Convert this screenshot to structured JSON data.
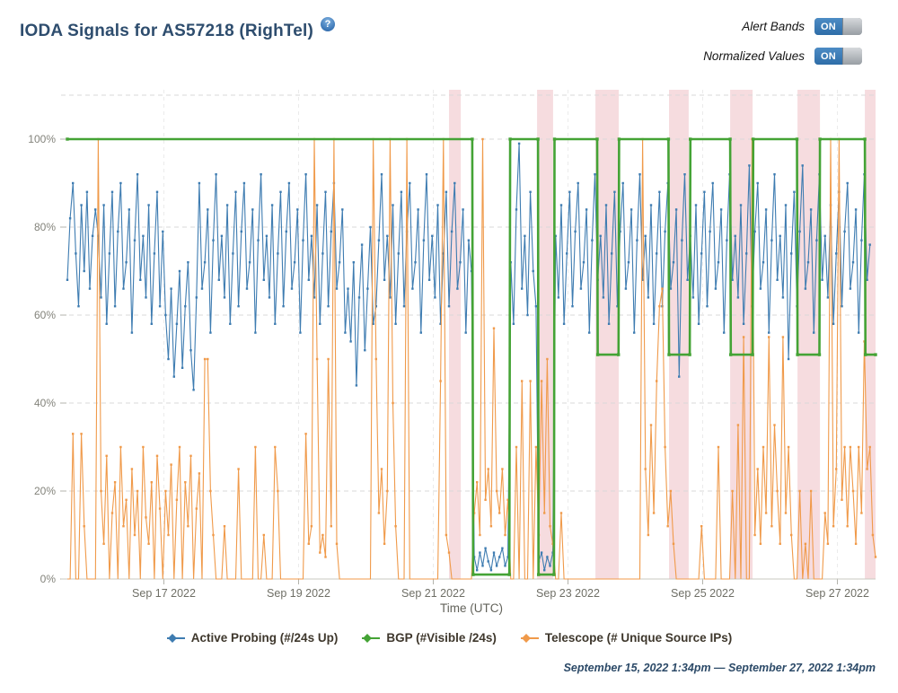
{
  "header": {
    "title": "IODA Signals for AS57218 (RighTel)",
    "help_glyph": "?",
    "toggles": [
      {
        "label": "Alert Bands",
        "state": "ON"
      },
      {
        "label": "Normalized Values",
        "state": "ON"
      }
    ]
  },
  "footer": {
    "date_range": "September 15, 2022 1:34pm — September 27, 2022 1:34pm"
  },
  "colors": {
    "alert_band": "#d96b79",
    "grid": "#d9d9d9",
    "grid_v": "#ebebeb",
    "axis": "#c9c9c2",
    "tick": "#b3b3ac"
  },
  "chart_data": {
    "type": "line",
    "title": "IODA Signals for AS57218 (RighTel)",
    "xlabel": "Time (UTC)",
    "ylabel": "",
    "x_unit": "hours since Sep 15 2022 1:34pm UTC",
    "x_range_hours": [
      0,
      288
    ],
    "ylim_pct": [
      0,
      110
    ],
    "grid": "dashed",
    "legend_position": "bottom",
    "y_ticks": [
      {
        "v": 0,
        "label": "0%"
      },
      {
        "v": 20,
        "label": "20%"
      },
      {
        "v": 40,
        "label": "40%"
      },
      {
        "v": 60,
        "label": "60%"
      },
      {
        "v": 80,
        "label": "80%"
      },
      {
        "v": 100,
        "label": "100%"
      }
    ],
    "y_gridlines": [
      0,
      20,
      40,
      60,
      80,
      100,
      110
    ],
    "x_ticks": [
      {
        "t": 34.4,
        "label": "Sep 17 2022"
      },
      {
        "t": 82.4,
        "label": "Sep 19 2022"
      },
      {
        "t": 130.4,
        "label": "Sep 21 2022"
      },
      {
        "t": 178.4,
        "label": "Sep 23 2022"
      },
      {
        "t": 226.4,
        "label": "Sep 25 2022"
      },
      {
        "t": 274.4,
        "label": "Sep 27 2022"
      }
    ],
    "alert_bands": [
      [
        136.0,
        140.2
      ],
      [
        167.4,
        173.1
      ],
      [
        188.2,
        196.5
      ],
      [
        214.4,
        221.4
      ],
      [
        236.2,
        244.2
      ],
      [
        260.2,
        268.2
      ],
      [
        284.2,
        288.0
      ]
    ],
    "series": [
      {
        "name": "Active Probing (#/24s Up)",
        "color": "#3e7cb1",
        "step_hours": 1,
        "values": [
          68,
          82,
          90,
          74,
          62,
          85,
          70,
          88,
          66,
          78,
          84,
          78,
          64,
          85,
          58,
          74,
          88,
          62,
          79,
          90,
          66,
          72,
          84,
          56,
          77,
          92,
          68,
          78,
          64,
          85,
          58,
          74,
          88,
          62,
          79,
          60,
          50,
          66,
          46,
          58,
          70,
          48,
          62,
          72,
          52,
          43,
          64,
          90,
          66,
          72,
          84,
          56,
          77,
          92,
          68,
          78,
          64,
          85,
          58,
          74,
          88,
          62,
          79,
          90,
          66,
          72,
          84,
          56,
          77,
          92,
          68,
          78,
          64,
          85,
          58,
          74,
          88,
          62,
          79,
          90,
          66,
          72,
          84,
          56,
          77,
          92,
          68,
          78,
          64,
          85,
          58,
          74,
          88,
          62,
          79,
          90,
          66,
          72,
          84,
          56,
          66,
          54,
          72,
          44,
          64,
          76,
          52,
          66,
          80,
          58,
          62,
          77,
          92,
          68,
          78,
          64,
          85,
          58,
          74,
          88,
          62,
          79,
          90,
          66,
          72,
          84,
          56,
          77,
          92,
          68,
          78,
          64,
          85,
          58,
          74,
          88,
          62,
          79,
          90,
          66,
          72,
          84,
          56,
          77,
          70,
          5,
          2,
          6,
          3,
          7,
          4,
          2,
          6,
          3,
          5,
          7,
          3,
          5,
          72,
          58,
          84,
          99,
          66,
          78,
          60,
          88,
          70,
          62,
          4,
          6,
          2,
          5,
          3,
          6,
          78,
          64,
          85,
          58,
          74,
          88,
          62,
          79,
          90,
          66,
          72,
          84,
          56,
          77,
          92,
          68,
          78,
          64,
          85,
          58,
          74,
          88,
          62,
          79,
          90,
          66,
          72,
          84,
          56,
          77,
          92,
          68,
          78,
          64,
          85,
          58,
          74,
          88,
          62,
          79,
          90,
          66,
          72,
          84,
          46,
          77,
          92,
          68,
          78,
          64,
          85,
          58,
          74,
          88,
          62,
          79,
          90,
          66,
          72,
          84,
          56,
          77,
          92,
          68,
          78,
          64,
          85,
          58,
          74,
          94,
          62,
          79,
          90,
          66,
          72,
          84,
          56,
          77,
          92,
          68,
          78,
          64,
          85,
          50,
          74,
          88,
          62,
          79,
          94,
          66,
          72,
          84,
          56,
          77,
          92,
          68,
          78,
          64,
          85,
          58,
          74,
          88,
          62,
          79,
          90,
          66,
          72,
          84,
          56,
          77,
          92,
          68,
          76
        ]
      },
      {
        "name": "BGP (#Visible /24s)",
        "color": "#44a335",
        "points": [
          [
            0,
            100
          ],
          [
            144.3,
            100
          ],
          [
            144.6,
            1
          ],
          [
            157.5,
            1
          ],
          [
            157.8,
            100
          ],
          [
            167.7,
            100
          ],
          [
            167.9,
            1
          ],
          [
            173.4,
            1
          ],
          [
            173.6,
            100
          ],
          [
            188.8,
            100
          ],
          [
            189.0,
            51
          ],
          [
            196.4,
            51
          ],
          [
            196.6,
            100
          ],
          [
            214.2,
            100
          ],
          [
            214.4,
            51
          ],
          [
            221.8,
            51
          ],
          [
            222.0,
            100
          ],
          [
            236.2,
            100
          ],
          [
            236.4,
            51
          ],
          [
            244.2,
            51
          ],
          [
            244.4,
            100
          ],
          [
            260.0,
            100
          ],
          [
            260.2,
            51
          ],
          [
            268.0,
            51
          ],
          [
            268.2,
            100
          ],
          [
            284.2,
            100
          ],
          [
            284.4,
            51
          ],
          [
            288,
            51
          ]
        ]
      },
      {
        "name": "Telescope (# Unique Source IPs)",
        "color": "#f09a4a",
        "step_hours": 1,
        "values": [
          0,
          0,
          33,
          0,
          0,
          33,
          12,
          0,
          0,
          0,
          0,
          100,
          20,
          8,
          28,
          0,
          15,
          22,
          0,
          30,
          12,
          18,
          0,
          25,
          10,
          20,
          0,
          30,
          14,
          8,
          22,
          0,
          28,
          16,
          0,
          20,
          10,
          26,
          0,
          18,
          30,
          0,
          22,
          12,
          28,
          0,
          16,
          24,
          0,
          50,
          50,
          20,
          10,
          0,
          0,
          0,
          12,
          0,
          0,
          0,
          0,
          25,
          0,
          0,
          0,
          0,
          0,
          30,
          0,
          0,
          10,
          0,
          0,
          0,
          30,
          20,
          0,
          0,
          0,
          0,
          0,
          0,
          0,
          0,
          0,
          33,
          8,
          12,
          100,
          50,
          6,
          10,
          5,
          50,
          12,
          100,
          8,
          0,
          0,
          0,
          0,
          0,
          0,
          0,
          0,
          0,
          0,
          0,
          0,
          100,
          50,
          15,
          25,
          8,
          20,
          100,
          40,
          12,
          0,
          0,
          0,
          100,
          0,
          0,
          0,
          0,
          0,
          0,
          0,
          0,
          0,
          0,
          0,
          45,
          100,
          10,
          6,
          0,
          0,
          0,
          0,
          0,
          0,
          0,
          0,
          15,
          22,
          10,
          100,
          18,
          25,
          12,
          57,
          20,
          15,
          25,
          10,
          18,
          0,
          0,
          30,
          0,
          45,
          0,
          0,
          45,
          0,
          30,
          10,
          45,
          15,
          50,
          12,
          8,
          0,
          0,
          15,
          0,
          0,
          0,
          0,
          0,
          0,
          0,
          0,
          0,
          0,
          0,
          0,
          0,
          0,
          0,
          0,
          0,
          0,
          0,
          0,
          0,
          0,
          0,
          0,
          0,
          0,
          0,
          0,
          100,
          25,
          10,
          35,
          15,
          45,
          62,
          66,
          30,
          12,
          20,
          8,
          0,
          0,
          0,
          0,
          0,
          0,
          0,
          0,
          0,
          12,
          0,
          0,
          0,
          0,
          0,
          30,
          0,
          0,
          0,
          0,
          20,
          0,
          35,
          0,
          55,
          0,
          0,
          100,
          10,
          25,
          8,
          30,
          15,
          55,
          12,
          35,
          20,
          8,
          55,
          15,
          30,
          10,
          0,
          0,
          20,
          0,
          8,
          0,
          20,
          0,
          0,
          0,
          0,
          15,
          8,
          100,
          12,
          25,
          100,
          18,
          30,
          12,
          30,
          20,
          8,
          30,
          15,
          54,
          25,
          30,
          10,
          5
        ]
      }
    ]
  }
}
